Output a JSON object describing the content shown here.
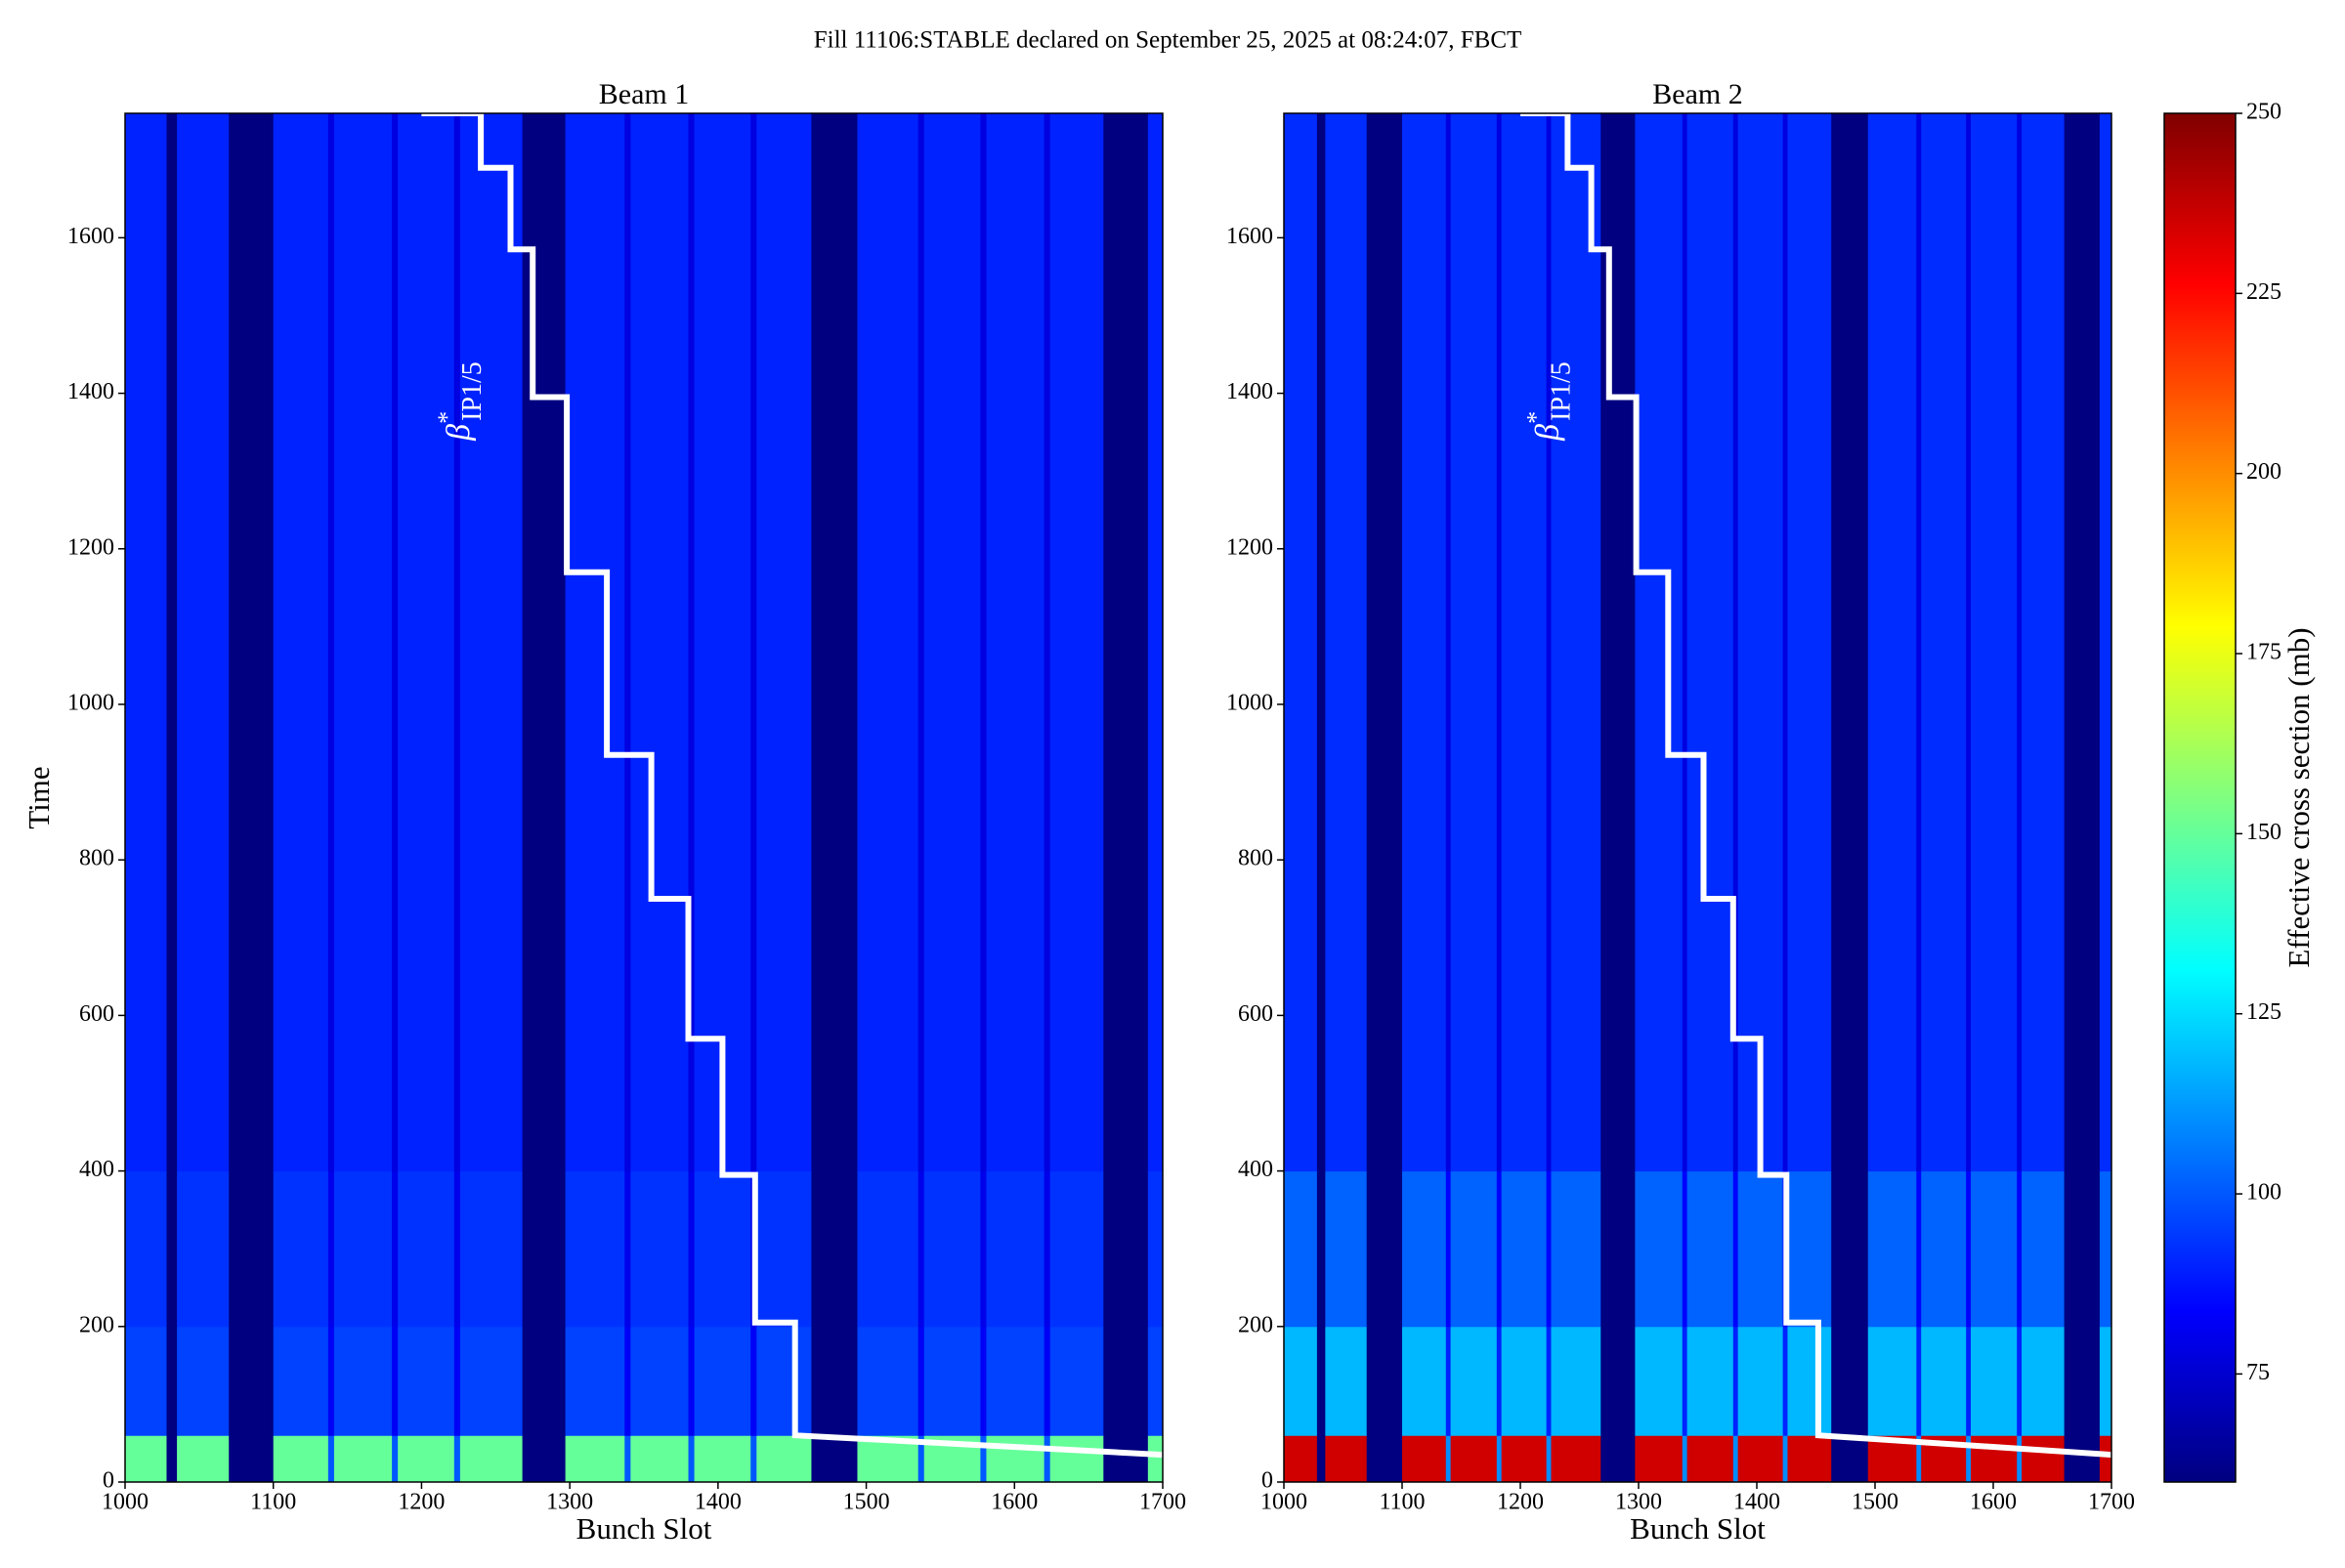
{
  "figure": {
    "title": "Fill 11106:STABLE declared on September 25, 2025 at 08:24:07, FBCT"
  },
  "colorbar": {
    "label": "Effective cross section (mb)",
    "colormap": "jet",
    "lim": [
      60,
      250
    ],
    "ticks": [
      75,
      100,
      125,
      150,
      175,
      200,
      225,
      250
    ]
  },
  "chart_data": [
    {
      "type": "heatmap",
      "title": "Beam 1",
      "xlabel": "Bunch Slot",
      "ylabel": "Time",
      "xlim": [
        1000,
        1700
      ],
      "ylim": [
        0,
        1760
      ],
      "xticks": [
        1000,
        1100,
        1200,
        1300,
        1400,
        1500,
        1600,
        1700
      ],
      "yticks": [
        0,
        200,
        400,
        600,
        800,
        1000,
        1200,
        1400,
        1600
      ],
      "x_edges": [
        1000,
        1028,
        1035,
        1070,
        1100,
        1137,
        1141,
        1180,
        1184,
        1222,
        1226,
        1268,
        1297,
        1337,
        1341,
        1380,
        1384,
        1422,
        1426,
        1463,
        1494,
        1535,
        1539,
        1577,
        1581,
        1620,
        1624,
        1660,
        1690,
        1700
      ],
      "y_edges": [
        0,
        60,
        200,
        400,
        1760
      ],
      "values": [
        [
          150,
          60,
          150,
          60,
          150,
          100,
          150,
          100,
          150,
          100,
          150,
          60,
          150,
          100,
          150,
          100,
          150,
          100,
          150,
          60,
          150,
          100,
          150,
          100,
          150,
          100,
          150,
          60,
          150
        ],
        [
          96,
          60,
          96,
          60,
          96,
          82,
          96,
          82,
          96,
          82,
          96,
          60,
          96,
          82,
          96,
          82,
          96,
          82,
          96,
          60,
          96,
          82,
          96,
          82,
          96,
          82,
          96,
          60,
          96
        ],
        [
          93,
          60,
          93,
          60,
          93,
          80,
          93,
          80,
          93,
          80,
          93,
          60,
          93,
          80,
          93,
          80,
          93,
          80,
          93,
          60,
          93,
          80,
          93,
          80,
          93,
          80,
          93,
          60,
          93
        ],
        [
          90,
          60,
          90,
          60,
          90,
          78,
          90,
          78,
          90,
          78,
          90,
          60,
          90,
          78,
          90,
          78,
          90,
          78,
          90,
          60,
          90,
          78,
          90,
          78,
          90,
          78,
          90,
          60,
          90
        ]
      ],
      "line": {
        "color": "#ffffff",
        "x": [
          1200,
          1240,
          1240,
          1260,
          1260,
          1275,
          1275,
          1298,
          1298,
          1325,
          1325,
          1355,
          1355,
          1380,
          1380,
          1403,
          1403,
          1425,
          1425,
          1452,
          1452,
          1700
        ],
        "y": [
          1760,
          1760,
          1690,
          1690,
          1585,
          1585,
          1395,
          1395,
          1170,
          1170,
          935,
          935,
          750,
          750,
          570,
          570,
          395,
          395,
          205,
          205,
          60,
          35
        ]
      },
      "annotation": {
        "text": "β",
        "sup": "*",
        "sub": "IP1/5"
      }
    },
    {
      "type": "heatmap",
      "title": "Beam 2",
      "xlabel": "Bunch Slot",
      "xlim": [
        1000,
        1700
      ],
      "ylim": [
        0,
        1760
      ],
      "xticks": [
        1000,
        1100,
        1200,
        1300,
        1400,
        1500,
        1600,
        1700
      ],
      "yticks": [
        0,
        200,
        400,
        600,
        800,
        1000,
        1200,
        1400,
        1600
      ],
      "x_edges": [
        1000,
        1028,
        1035,
        1070,
        1100,
        1137,
        1141,
        1180,
        1184,
        1222,
        1226,
        1268,
        1297,
        1337,
        1341,
        1380,
        1384,
        1422,
        1426,
        1463,
        1494,
        1535,
        1539,
        1577,
        1581,
        1620,
        1624,
        1660,
        1690,
        1700
      ],
      "y_edges": [
        0,
        60,
        200,
        400,
        1760
      ],
      "values": [
        [
          235,
          60,
          235,
          60,
          235,
          110,
          235,
          110,
          235,
          110,
          235,
          60,
          235,
          110,
          235,
          110,
          235,
          110,
          235,
          60,
          235,
          110,
          235,
          110,
          235,
          110,
          235,
          60,
          235
        ],
        [
          118,
          60,
          118,
          60,
          118,
          90,
          118,
          90,
          118,
          90,
          118,
          60,
          118,
          90,
          118,
          90,
          118,
          90,
          118,
          60,
          118,
          90,
          118,
          90,
          118,
          90,
          118,
          60,
          118
        ],
        [
          102,
          60,
          102,
          60,
          102,
          84,
          102,
          84,
          102,
          84,
          102,
          60,
          102,
          84,
          102,
          84,
          102,
          84,
          102,
          60,
          102,
          84,
          102,
          84,
          102,
          84,
          102,
          60,
          102
        ],
        [
          92,
          60,
          92,
          60,
          92,
          78,
          92,
          78,
          92,
          78,
          92,
          60,
          92,
          78,
          92,
          78,
          92,
          78,
          92,
          60,
          92,
          78,
          92,
          78,
          92,
          78,
          92,
          60,
          92
        ]
      ],
      "line": {
        "color": "#ffffff",
        "x": [
          1200,
          1240,
          1240,
          1260,
          1260,
          1275,
          1275,
          1298,
          1298,
          1325,
          1325,
          1355,
          1355,
          1380,
          1380,
          1403,
          1403,
          1425,
          1425,
          1452,
          1452,
          1700
        ],
        "y": [
          1760,
          1760,
          1690,
          1690,
          1585,
          1585,
          1395,
          1395,
          1170,
          1170,
          935,
          935,
          750,
          750,
          570,
          570,
          395,
          395,
          205,
          205,
          60,
          35
        ]
      },
      "annotation": {
        "text": "β",
        "sup": "*",
        "sub": "IP1/5"
      }
    }
  ]
}
